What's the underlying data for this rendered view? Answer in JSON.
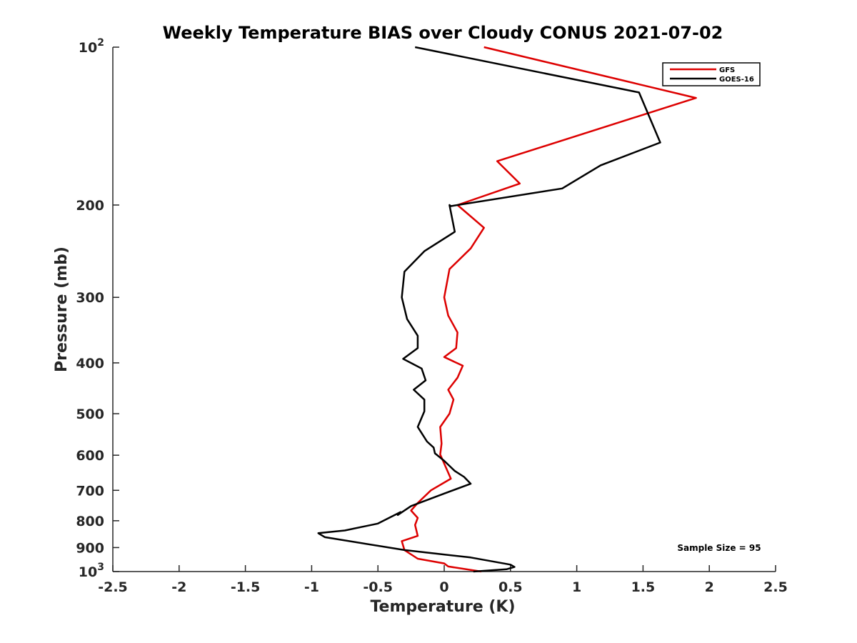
{
  "chart_data": {
    "type": "line",
    "title": "Weekly Temperature BIAS over Cloudy CONUS 2021-07-02",
    "xlabel": "Temperature (K)",
    "ylabel": "Pressure (mb)",
    "xlim": [
      -2.5,
      2.5
    ],
    "ylim": [
      100,
      1000
    ],
    "y_scale": "log",
    "y_reversed": true,
    "x_ticks": [
      "-2.5",
      "-2",
      "-1.5",
      "-1",
      "-0.5",
      "0",
      "0.5",
      "1",
      "1.5",
      "2",
      "2.5"
    ],
    "x_tick_values": [
      -2.5,
      -2,
      -1.5,
      -1,
      -0.5,
      0,
      0.5,
      1,
      1.5,
      2,
      2.5
    ],
    "y_ticks": [
      {
        "value": 100,
        "label": "10",
        "sup": "2"
      },
      {
        "value": 200,
        "label": "200",
        "sup": ""
      },
      {
        "value": 300,
        "label": "300",
        "sup": ""
      },
      {
        "value": 400,
        "label": "400",
        "sup": ""
      },
      {
        "value": 500,
        "label": "500",
        "sup": ""
      },
      {
        "value": 600,
        "label": "600",
        "sup": ""
      },
      {
        "value": 700,
        "label": "700",
        "sup": ""
      },
      {
        "value": 800,
        "label": "800",
        "sup": ""
      },
      {
        "value": 900,
        "label": "900",
        "sup": ""
      },
      {
        "value": 1000,
        "label": "10",
        "sup": "3"
      }
    ],
    "grid": false,
    "legend_position": "top-right",
    "annotation": "Sample Size = 95",
    "series": [
      {
        "name": "GFS",
        "color": "#dd0000",
        "points": [
          [
            0.3,
            100
          ],
          [
            1.9,
            125
          ],
          [
            0.4,
            165
          ],
          [
            0.57,
            182
          ],
          [
            0.1,
            200
          ],
          [
            0.3,
            221
          ],
          [
            0.2,
            242
          ],
          [
            0.04,
            265
          ],
          [
            0.0,
            300
          ],
          [
            0.03,
            325
          ],
          [
            0.1,
            350
          ],
          [
            0.09,
            375
          ],
          [
            0.0,
            390
          ],
          [
            0.14,
            405
          ],
          [
            0.1,
            427
          ],
          [
            0.03,
            450
          ],
          [
            0.07,
            470
          ],
          [
            0.04,
            500
          ],
          [
            -0.03,
            530
          ],
          [
            -0.02,
            570
          ],
          [
            -0.03,
            598
          ],
          [
            0.05,
            665
          ],
          [
            -0.1,
            700
          ],
          [
            -0.2,
            740
          ],
          [
            -0.25,
            765
          ],
          [
            -0.2,
            790
          ],
          [
            -0.22,
            815
          ],
          [
            -0.2,
            855
          ],
          [
            -0.32,
            875
          ],
          [
            -0.3,
            910
          ],
          [
            -0.2,
            945
          ],
          [
            0.0,
            965
          ],
          [
            0.03,
            978
          ],
          [
            0.28,
            1000
          ]
        ]
      },
      {
        "name": "GOES-16",
        "color": "#000000",
        "points": [
          [
            -0.22,
            100
          ],
          [
            1.47,
            122
          ],
          [
            1.63,
            152
          ],
          [
            1.18,
            168
          ],
          [
            0.89,
            186
          ],
          [
            0.05,
            201
          ],
          [
            0.04,
            200
          ],
          [
            0.08,
            225
          ],
          [
            -0.15,
            245
          ],
          [
            -0.3,
            268
          ],
          [
            -0.32,
            300
          ],
          [
            -0.28,
            330
          ],
          [
            -0.2,
            355
          ],
          [
            -0.2,
            375
          ],
          [
            -0.31,
            393
          ],
          [
            -0.17,
            410
          ],
          [
            -0.14,
            432
          ],
          [
            -0.23,
            450
          ],
          [
            -0.15,
            470
          ],
          [
            -0.15,
            495
          ],
          [
            -0.2,
            530
          ],
          [
            -0.13,
            565
          ],
          [
            -0.08,
            580
          ],
          [
            -0.07,
            595
          ],
          [
            0.0,
            615
          ],
          [
            0.08,
            643
          ],
          [
            0.15,
            660
          ],
          [
            0.2,
            680
          ],
          [
            0.0,
            710
          ],
          [
            -0.25,
            750
          ],
          [
            -0.35,
            780
          ],
          [
            -0.33,
            770
          ],
          [
            -0.5,
            810
          ],
          [
            -0.75,
            835
          ],
          [
            -0.95,
            845
          ],
          [
            -0.9,
            860
          ],
          [
            -0.3,
            910
          ],
          [
            0.2,
            940
          ],
          [
            0.5,
            970
          ],
          [
            0.53,
            980
          ],
          [
            0.47,
            990
          ],
          [
            0.22,
            1000
          ]
        ]
      }
    ]
  }
}
